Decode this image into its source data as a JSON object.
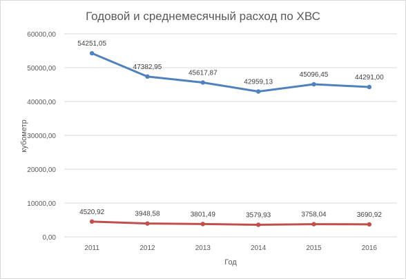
{
  "chart_data": {
    "type": "line",
    "title": "Годовой и среднемесячный расход по ХВС",
    "xlabel": "Год",
    "ylabel": "кубометр",
    "categories": [
      "2011",
      "2012",
      "2013",
      "2014",
      "2015",
      "2016"
    ],
    "ylim": [
      0,
      60000
    ],
    "yticks": [
      "0,00",
      "10000,00",
      "20000,00",
      "30000,00",
      "40000,00",
      "50000,00",
      "60000,00"
    ],
    "grid": true,
    "series": [
      {
        "color": "#4f81bd",
        "values": [
          54251.05,
          47382.95,
          45617.87,
          42959.13,
          45096.45,
          44291.0
        ],
        "labels": [
          "54251,05",
          "47382,95",
          "45617,87",
          "42959,13",
          "45096,45",
          "44291,00"
        ]
      },
      {
        "color": "#c0504d",
        "values": [
          4520.92,
          3948.58,
          3801.49,
          3579.93,
          3758.04,
          3690.92
        ],
        "labels": [
          "4520,92",
          "3948,58",
          "3801,49",
          "3579,93",
          "3758,04",
          "3690,92"
        ]
      }
    ]
  }
}
